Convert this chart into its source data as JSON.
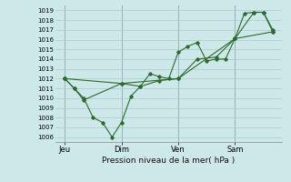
{
  "background_color": "#cce8e8",
  "plot_bg_color": "#cce8e8",
  "grid_color": "#aacccc",
  "line_color": "#2d6a2d",
  "marker_color": "#2d6a2d",
  "xlabel": "Pression niveau de la mer( hPa )",
  "ylim": [
    1005.5,
    1019.5
  ],
  "yticks": [
    1006,
    1007,
    1008,
    1009,
    1010,
    1011,
    1012,
    1013,
    1014,
    1015,
    1016,
    1017,
    1018,
    1019
  ],
  "day_labels": [
    "Jeu",
    "Dim",
    "Ven",
    "Sam"
  ],
  "day_positions": [
    0.5,
    3.5,
    6.5,
    9.5
  ],
  "xlim": [
    0,
    12
  ],
  "line1_x": [
    0.5,
    1.0,
    1.5,
    2.0,
    2.5,
    3.0,
    3.5,
    4.0,
    4.5,
    5.0,
    5.5,
    6.0,
    6.5,
    7.0,
    7.5,
    8.0,
    8.5,
    9.0,
    9.5,
    10.0,
    10.5,
    11.0,
    11.5
  ],
  "line1_y": [
    1012.0,
    1011.0,
    1010.0,
    1008.0,
    1007.5,
    1006.0,
    1007.5,
    1010.2,
    1011.2,
    1012.5,
    1012.2,
    1012.0,
    1014.7,
    1015.3,
    1015.7,
    1013.8,
    1014.0,
    1014.0,
    1016.1,
    1018.7,
    1018.8,
    1018.8,
    1017.0
  ],
  "line2_x": [
    0.5,
    1.0,
    1.5,
    3.5,
    4.5,
    5.5,
    6.5,
    7.5,
    8.5,
    9.5,
    10.5,
    11.0,
    11.5
  ],
  "line2_y": [
    1012.0,
    1011.0,
    1009.8,
    1011.5,
    1011.2,
    1011.8,
    1012.0,
    1014.0,
    1014.2,
    1016.1,
    1018.8,
    1018.8,
    1016.8
  ],
  "line3_x": [
    0.5,
    3.5,
    6.5,
    9.5,
    11.5
  ],
  "line3_y": [
    1012.0,
    1011.5,
    1012.0,
    1016.1,
    1016.8
  ]
}
